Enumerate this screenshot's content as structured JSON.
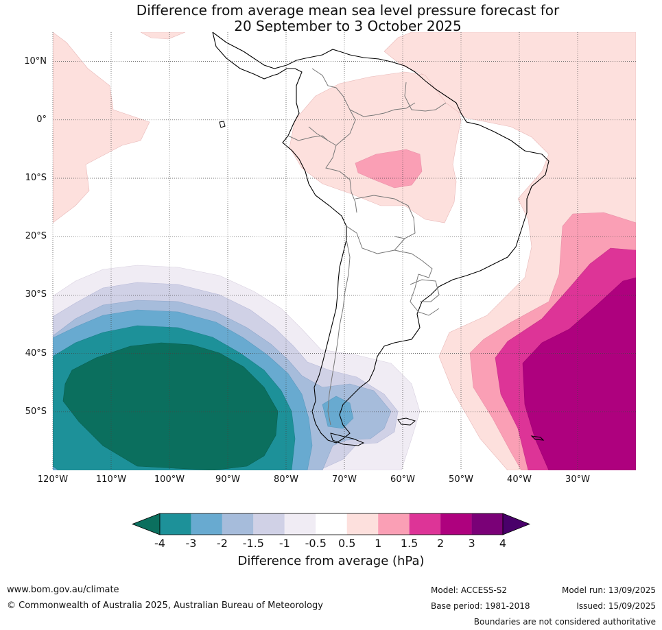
{
  "title_line1": "Difference from average mean sea level pressure forecast for",
  "title_line2": "20 September to 3 October 2025",
  "map": {
    "lon_range": [
      -120,
      -20
    ],
    "lat_range": [
      -60,
      15
    ],
    "lat_labels": [
      "10°N",
      "0°",
      "10°S",
      "20°S",
      "30°S",
      "40°S",
      "50°S"
    ],
    "lat_values": [
      10,
      0,
      -10,
      -20,
      -30,
      -40,
      -50
    ],
    "lon_labels": [
      "120°W",
      "110°W",
      "100°W",
      "90°W",
      "80°W",
      "70°W",
      "60°W",
      "50°W",
      "40°W",
      "30°W"
    ],
    "lon_values": [
      -120,
      -110,
      -100,
      -90,
      -80,
      -70,
      -60,
      -50,
      -40,
      -30
    ],
    "gridlines": "dotted"
  },
  "colorbar": {
    "label": "Difference from average (hPa)",
    "ticks": [
      "-4",
      "-3",
      "-2",
      "-1.5",
      "-1",
      "-0.5",
      "0.5",
      "1",
      "1.5",
      "2",
      "3",
      "4"
    ],
    "colors": [
      "#0b6f5e",
      "#1d9199",
      "#68aad0",
      "#a6bcdb",
      "#d0d1e6",
      "#f0ecf4",
      "#ffffff",
      "#fde0dd",
      "#fa9fb5",
      "#dd3497",
      "#ae017e",
      "#7a0177",
      "#49006a"
    ]
  },
  "footer": {
    "website": "www.bom.gov.au/climate",
    "copyright": "© Commonwealth of Australia 2025, Australian Bureau of Meteorology",
    "model": "Model: ACCESS-S2",
    "base_period": "Base period: 1981-2018",
    "model_run": "Model run: 13/09/2025",
    "issued": "Issued: 15/09/2025",
    "disclaimer": "Boundaries are not considered authoritative"
  }
}
